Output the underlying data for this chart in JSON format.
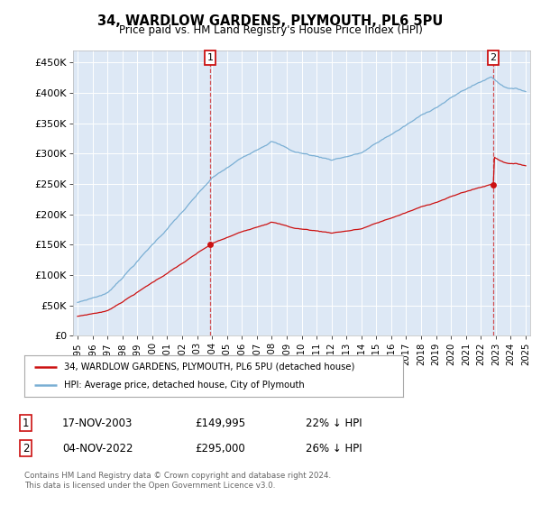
{
  "title": "34, WARDLOW GARDENS, PLYMOUTH, PL6 5PU",
  "subtitle": "Price paid vs. HM Land Registry's House Price Index (HPI)",
  "ylabel_ticks": [
    "£0",
    "£50K",
    "£100K",
    "£150K",
    "£200K",
    "£250K",
    "£300K",
    "£350K",
    "£400K",
    "£450K"
  ],
  "ytick_values": [
    0,
    50000,
    100000,
    150000,
    200000,
    250000,
    300000,
    350000,
    400000,
    450000
  ],
  "ylim": [
    0,
    470000
  ],
  "xlim_start": 1994.7,
  "xlim_end": 2025.3,
  "background_color": "#dde8f5",
  "grid_color": "#ffffff",
  "hpi_color": "#7aafd4",
  "price_color": "#cc1111",
  "marker1_date": 2003.88,
  "marker2_date": 2022.83,
  "marker1_price": 149995,
  "marker2_price": 295000,
  "legend_label1": "34, WARDLOW GARDENS, PLYMOUTH, PL6 5PU (detached house)",
  "legend_label2": "HPI: Average price, detached house, City of Plymouth",
  "note1_num": "1",
  "note1_date": "17-NOV-2003",
  "note1_price": "£149,995",
  "note1_hpi": "22% ↓ HPI",
  "note2_num": "2",
  "note2_date": "04-NOV-2022",
  "note2_price": "£295,000",
  "note2_hpi": "26% ↓ HPI",
  "footer": "Contains HM Land Registry data © Crown copyright and database right 2024.\nThis data is licensed under the Open Government Licence v3.0.",
  "xtick_years": [
    1995,
    1996,
    1997,
    1998,
    1999,
    2000,
    2001,
    2002,
    2003,
    2004,
    2005,
    2006,
    2007,
    2008,
    2009,
    2010,
    2011,
    2012,
    2013,
    2014,
    2015,
    2016,
    2017,
    2018,
    2019,
    2020,
    2021,
    2022,
    2023,
    2024,
    2025
  ]
}
